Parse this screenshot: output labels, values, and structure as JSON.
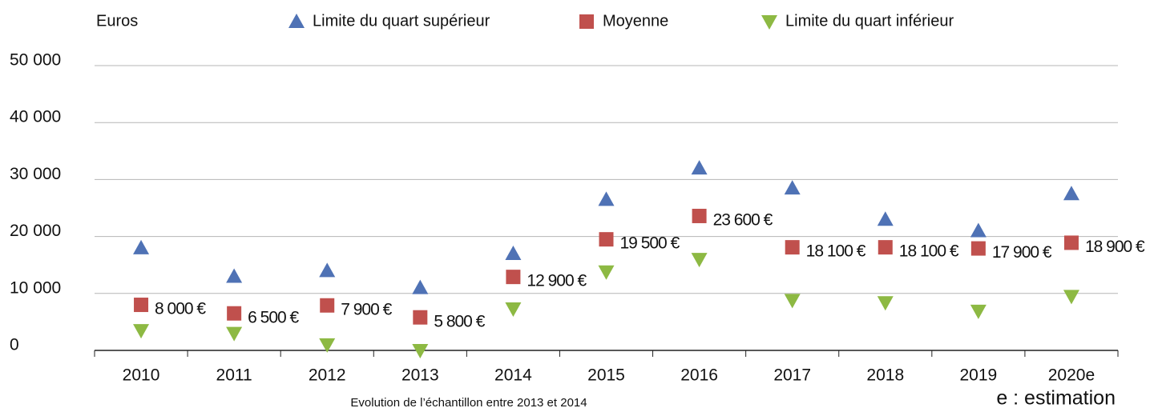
{
  "chart_data": {
    "type": "scatter",
    "y_label": "Euros",
    "annotations": [
      "Evolution de l’échantillon entre 2013 et 2014",
      "e : estimation"
    ],
    "categories": [
      "2010",
      "2011",
      "2012",
      "2013",
      "2014",
      "2015",
      "2016",
      "2017",
      "2018",
      "2019",
      "2020e"
    ],
    "series": [
      {
        "name": "Limite du quart supérieur",
        "color": "#4f72b5",
        "marker": "triangle-up",
        "values": [
          18000,
          13000,
          14000,
          11000,
          17000,
          26500,
          32000,
          28500,
          23000,
          21000,
          27500
        ]
      },
      {
        "name": "Moyenne",
        "color": "#c0504d",
        "marker": "square",
        "values": [
          8000,
          6500,
          7900,
          5800,
          12900,
          19500,
          23600,
          18100,
          18100,
          17900,
          18900
        ],
        "value_labels": [
          "8 000 €",
          "6 500 €",
          "7 900 €",
          "5 800 €",
          "12 900 €",
          "19 500 €",
          "23 600 €",
          "18 100 €",
          "18 100 €",
          "17 900 €",
          "18 900 €"
        ]
      },
      {
        "name": "Limite du quart inférieur",
        "color": "#8db943",
        "marker": "triangle-down",
        "values": [
          3500,
          3000,
          1000,
          0,
          7300,
          13800,
          16000,
          8800,
          8400,
          6900,
          9500
        ]
      }
    ],
    "ylim": [
      0,
      50000
    ],
    "yticks": [
      0,
      {
        "value": 10000,
        "label": "10 000"
      },
      {
        "value": 20000,
        "label": "20 000"
      },
      {
        "value": 30000,
        "label": "30 000"
      },
      {
        "value": 40000,
        "label": "40 000"
      },
      {
        "value": 50000,
        "label": "50 000"
      }
    ],
    "grid": true
  }
}
